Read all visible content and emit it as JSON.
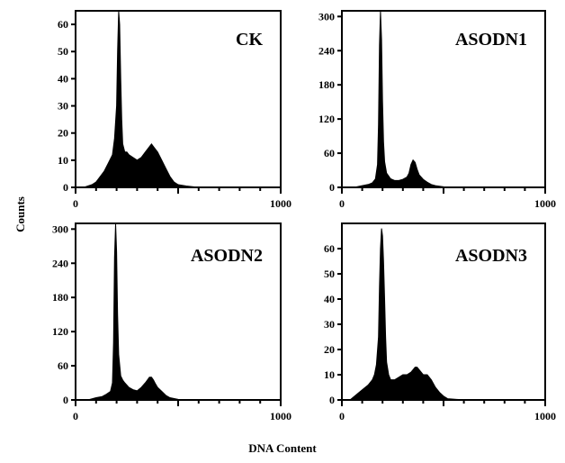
{
  "figure": {
    "ylabel": "Counts",
    "xlabel": "DNA Content"
  },
  "chart_data": [
    {
      "type": "area",
      "title": "CK",
      "xlim": [
        0,
        1000
      ],
      "ylim": [
        0,
        65
      ],
      "xticks": [
        0,
        1000
      ],
      "yticks": [
        0,
        10,
        20,
        30,
        40,
        50,
        60
      ],
      "x": [
        0,
        40,
        80,
        100,
        120,
        140,
        160,
        180,
        190,
        200,
        205,
        210,
        215,
        220,
        225,
        230,
        240,
        250,
        260,
        280,
        300,
        320,
        340,
        360,
        370,
        380,
        390,
        400,
        420,
        440,
        460,
        480,
        500,
        540,
        600,
        700,
        800,
        900,
        1000
      ],
      "values": [
        0,
        0,
        1,
        2,
        4,
        6,
        9,
        12,
        18,
        30,
        50,
        65,
        60,
        40,
        25,
        16,
        13,
        13,
        12,
        11,
        10,
        11,
        13,
        15,
        16,
        15,
        14,
        13,
        10,
        7,
        4,
        2,
        1,
        0.5,
        0,
        0,
        0,
        0,
        0
      ]
    },
    {
      "type": "area",
      "title": "ASODN1",
      "xlim": [
        0,
        1000
      ],
      "ylim": [
        0,
        310
      ],
      "xticks": [
        0,
        1000
      ],
      "yticks": [
        0,
        60,
        120,
        180,
        240,
        300
      ],
      "x": [
        0,
        60,
        100,
        130,
        150,
        165,
        175,
        180,
        185,
        190,
        195,
        200,
        205,
        210,
        220,
        240,
        260,
        280,
        300,
        320,
        330,
        340,
        350,
        360,
        370,
        380,
        400,
        420,
        440,
        460,
        500,
        600,
        700,
        800,
        900,
        1000
      ],
      "values": [
        0,
        0,
        3,
        5,
        8,
        15,
        40,
        110,
        250,
        310,
        260,
        150,
        80,
        45,
        25,
        15,
        12,
        12,
        14,
        18,
        25,
        40,
        48,
        44,
        32,
        22,
        14,
        9,
        5,
        3,
        1,
        0,
        0,
        0,
        0,
        0
      ]
    },
    {
      "type": "area",
      "title": "ASODN2",
      "xlim": [
        0,
        1000
      ],
      "ylim": [
        0,
        310
      ],
      "xticks": [
        0,
        1000
      ],
      "yticks": [
        0,
        60,
        120,
        180,
        240,
        300
      ],
      "x": [
        0,
        60,
        100,
        130,
        150,
        170,
        180,
        185,
        190,
        195,
        200,
        205,
        210,
        220,
        230,
        240,
        260,
        280,
        300,
        320,
        340,
        350,
        360,
        370,
        380,
        390,
        400,
        420,
        440,
        460,
        500,
        600,
        700,
        800,
        900,
        1000
      ],
      "values": [
        0,
        0,
        4,
        6,
        10,
        15,
        30,
        100,
        250,
        310,
        260,
        150,
        80,
        42,
        35,
        30,
        22,
        18,
        16,
        22,
        30,
        35,
        40,
        40,
        35,
        28,
        22,
        15,
        8,
        4,
        1,
        0,
        0,
        0,
        0,
        0
      ]
    },
    {
      "type": "area",
      "title": "ASODN3",
      "xlim": [
        0,
        1000
      ],
      "ylim": [
        0,
        70
      ],
      "xticks": [
        0,
        1000
      ],
      "yticks": [
        0,
        10,
        20,
        30,
        40,
        50,
        60
      ],
      "x": [
        0,
        40,
        70,
        100,
        130,
        150,
        160,
        170,
        180,
        185,
        190,
        195,
        200,
        205,
        210,
        215,
        220,
        230,
        240,
        260,
        280,
        300,
        320,
        340,
        350,
        360,
        370,
        380,
        400,
        420,
        440,
        460,
        480,
        500,
        520,
        600,
        700,
        800,
        900,
        1000
      ],
      "values": [
        0,
        0,
        2,
        4,
        6,
        8,
        10,
        14,
        25,
        45,
        60,
        68,
        65,
        55,
        40,
        25,
        15,
        10,
        8,
        8,
        9,
        10,
        10,
        11,
        12,
        13,
        13,
        12,
        10,
        10,
        8,
        5,
        3,
        1.5,
        0.5,
        0,
        0,
        0,
        0,
        0
      ]
    }
  ]
}
